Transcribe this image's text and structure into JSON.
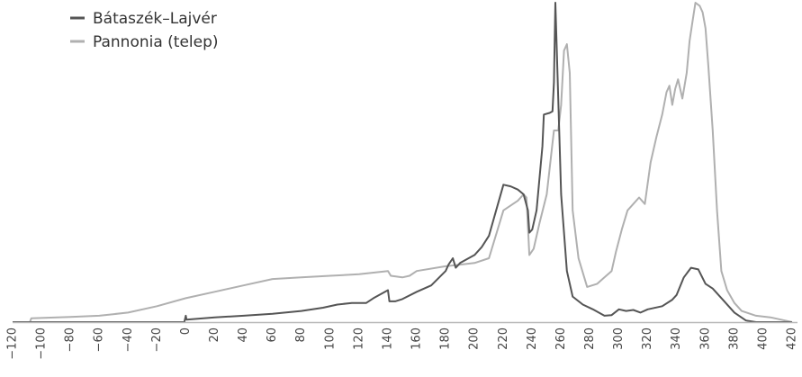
{
  "chart_data": {
    "type": "line",
    "title": "",
    "xlabel": "",
    "ylabel": "",
    "xlim": [
      -120,
      420
    ],
    "ylim": [
      0,
      100
    ],
    "x_ticks": [
      -120,
      -100,
      -80,
      -60,
      -40,
      -20,
      0,
      20,
      40,
      60,
      80,
      100,
      120,
      140,
      160,
      180,
      200,
      220,
      240,
      260,
      280,
      300,
      320,
      340,
      360,
      380,
      400,
      420
    ],
    "x_tick_labels": [
      "−120",
      "−100",
      "−80",
      "−60",
      "−40",
      "−20",
      "0",
      "20",
      "40",
      "60",
      "80",
      "100",
      "120",
      "140",
      "160",
      "180",
      "200",
      "220",
      "240",
      "260",
      "280",
      "300",
      "320",
      "340",
      "360",
      "380",
      "400",
      "420"
    ],
    "grid": false,
    "legend_position": "top-left",
    "series": [
      {
        "name": "Bátaszék–Lajvér",
        "color": "#555555",
        "points": [
          [
            -120,
            0
          ],
          [
            -1,
            0
          ],
          [
            0,
            2.0
          ],
          [
            0.5,
            0.8
          ],
          [
            20,
            1.5
          ],
          [
            40,
            2.0
          ],
          [
            60,
            2.6
          ],
          [
            80,
            3.5
          ],
          [
            95,
            4.5
          ],
          [
            105,
            5.5
          ],
          [
            115,
            6.0
          ],
          [
            125,
            6.0
          ],
          [
            130,
            7.5
          ],
          [
            140,
            10.0
          ],
          [
            141,
            6.5
          ],
          [
            145,
            6.5
          ],
          [
            150,
            7.2
          ],
          [
            160,
            9.5
          ],
          [
            170,
            11.5
          ],
          [
            180,
            16.0
          ],
          [
            182,
            18.0
          ],
          [
            185,
            20.0
          ],
          [
            187,
            17.0
          ],
          [
            190,
            18.5
          ],
          [
            200,
            21.0
          ],
          [
            205,
            23.5
          ],
          [
            210,
            27.0
          ],
          [
            215,
            35.0
          ],
          [
            220,
            43.0
          ],
          [
            225,
            42.5
          ],
          [
            230,
            41.5
          ],
          [
            234,
            40.0
          ],
          [
            237,
            35.0
          ],
          [
            238,
            28.0
          ],
          [
            240,
            29.0
          ],
          [
            243,
            35.0
          ],
          [
            247,
            55.0
          ],
          [
            248,
            65.0
          ],
          [
            252,
            65.5
          ],
          [
            254,
            66.0
          ],
          [
            255,
            75.0
          ],
          [
            256,
            100.0
          ],
          [
            258,
            70.0
          ],
          [
            260,
            40.0
          ],
          [
            264,
            16.0
          ],
          [
            268,
            8.0
          ],
          [
            275,
            5.5
          ],
          [
            282,
            4.0
          ],
          [
            290,
            2.0
          ],
          [
            295,
            2.2
          ],
          [
            300,
            4.0
          ],
          [
            305,
            3.5
          ],
          [
            310,
            3.8
          ],
          [
            315,
            3.0
          ],
          [
            320,
            4.0
          ],
          [
            330,
            5.0
          ],
          [
            337,
            7.0
          ],
          [
            340,
            8.5
          ],
          [
            345,
            14.0
          ],
          [
            350,
            17.0
          ],
          [
            355,
            16.5
          ],
          [
            360,
            12.0
          ],
          [
            365,
            10.5
          ],
          [
            372,
            7.0
          ],
          [
            380,
            3.0
          ],
          [
            388,
            0.5
          ],
          [
            395,
            0
          ],
          [
            420,
            0
          ]
        ]
      },
      {
        "name": "Pannonia (telep)",
        "color": "#b0b0b0",
        "points": [
          [
            -120,
            0
          ],
          [
            -108,
            0
          ],
          [
            -107,
            1.2
          ],
          [
            -80,
            1.6
          ],
          [
            -60,
            2.0
          ],
          [
            -40,
            3.0
          ],
          [
            -20,
            5.0
          ],
          [
            0,
            7.5
          ],
          [
            20,
            9.5
          ],
          [
            40,
            11.5
          ],
          [
            60,
            13.5
          ],
          [
            80,
            14.0
          ],
          [
            100,
            14.5
          ],
          [
            120,
            15.0
          ],
          [
            140,
            16.0
          ],
          [
            142,
            14.5
          ],
          [
            150,
            14.0
          ],
          [
            155,
            14.5
          ],
          [
            160,
            16.0
          ],
          [
            180,
            17.5
          ],
          [
            190,
            18.0
          ],
          [
            200,
            18.5
          ],
          [
            210,
            20.0
          ],
          [
            220,
            35.0
          ],
          [
            230,
            38.0
          ],
          [
            234,
            40.0
          ],
          [
            236,
            39.0
          ],
          [
            237,
            30.0
          ],
          [
            238,
            21.0
          ],
          [
            241,
            23.0
          ],
          [
            245,
            31.0
          ],
          [
            250,
            40.0
          ],
          [
            255,
            60.0
          ],
          [
            258,
            60.0
          ],
          [
            260,
            68.0
          ],
          [
            262,
            85.0
          ],
          [
            264,
            87.0
          ],
          [
            266,
            78.0
          ],
          [
            268,
            35.0
          ],
          [
            272,
            20.0
          ],
          [
            278,
            11.0
          ],
          [
            285,
            12.0
          ],
          [
            290,
            14.0
          ],
          [
            295,
            16.0
          ],
          [
            298,
            22.0
          ],
          [
            302,
            29.0
          ],
          [
            306,
            35.0
          ],
          [
            310,
            37.0
          ],
          [
            314,
            39.0
          ],
          [
            318,
            37.0
          ],
          [
            322,
            50.0
          ],
          [
            326,
            58.0
          ],
          [
            330,
            65.0
          ],
          [
            333,
            72.0
          ],
          [
            335,
            74.0
          ],
          [
            337,
            68.0
          ],
          [
            339,
            73.0
          ],
          [
            341,
            76.0
          ],
          [
            344,
            70.0
          ],
          [
            347,
            78.0
          ],
          [
            349,
            88.0
          ],
          [
            351,
            94.0
          ],
          [
            353,
            100.0
          ],
          [
            356,
            99.0
          ],
          [
            358,
            97.0
          ],
          [
            360,
            92.0
          ],
          [
            362,
            80.0
          ],
          [
            365,
            60.0
          ],
          [
            368,
            35.0
          ],
          [
            371,
            16.0
          ],
          [
            375,
            10.0
          ],
          [
            380,
            6.0
          ],
          [
            385,
            3.5
          ],
          [
            395,
            2.0
          ],
          [
            405,
            1.5
          ],
          [
            415,
            0.5
          ],
          [
            420,
            0
          ]
        ]
      }
    ]
  }
}
